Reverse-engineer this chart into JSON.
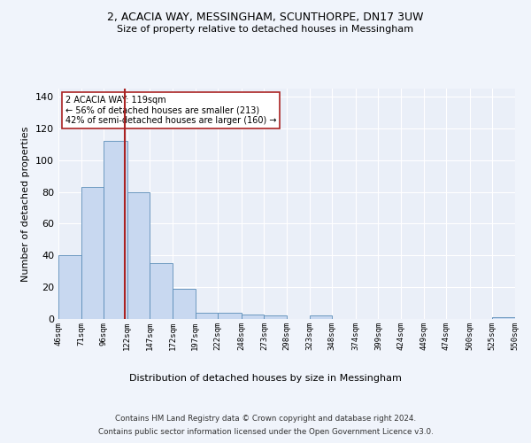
{
  "title1": "2, ACACIA WAY, MESSINGHAM, SCUNTHORPE, DN17 3UW",
  "title2": "Size of property relative to detached houses in Messingham",
  "xlabel": "Distribution of detached houses by size in Messingham",
  "ylabel": "Number of detached properties",
  "annotation_line1": "2 ACACIA WAY: 119sqm",
  "annotation_line2": "← 56% of detached houses are smaller (213)",
  "annotation_line3": "42% of semi-detached houses are larger (160) →",
  "footer1": "Contains HM Land Registry data © Crown copyright and database right 2024.",
  "footer2": "Contains public sector information licensed under the Open Government Licence v3.0.",
  "bar_edges": [
    46,
    71,
    96,
    122,
    147,
    172,
    197,
    222,
    248,
    273,
    298,
    323,
    348,
    374,
    399,
    424,
    449,
    474,
    500,
    525,
    550
  ],
  "bar_heights": [
    40,
    83,
    112,
    80,
    35,
    19,
    4,
    4,
    3,
    2,
    0,
    2,
    0,
    0,
    0,
    0,
    0,
    0,
    0,
    1,
    0
  ],
  "bar_color": "#c8d8f0",
  "bar_edgecolor": "#5b8db8",
  "property_line_x": 119,
  "property_line_color": "#aa2222",
  "ylim": [
    0,
    145
  ],
  "xlim": [
    46,
    550
  ],
  "bg_color": "#eaeff8",
  "grid_color": "#ffffff",
  "annotation_box_edgecolor": "#aa2222",
  "annotation_box_facecolor": "#ffffff",
  "tick_labels": [
    "46sqm",
    "71sqm",
    "96sqm",
    "122sqm",
    "147sqm",
    "172sqm",
    "197sqm",
    "222sqm",
    "248sqm",
    "273sqm",
    "298sqm",
    "323sqm",
    "348sqm",
    "374sqm",
    "399sqm",
    "424sqm",
    "449sqm",
    "474sqm",
    "500sqm",
    "525sqm",
    "550sqm"
  ],
  "yticks": [
    0,
    20,
    40,
    60,
    80,
    100,
    120,
    140
  ]
}
